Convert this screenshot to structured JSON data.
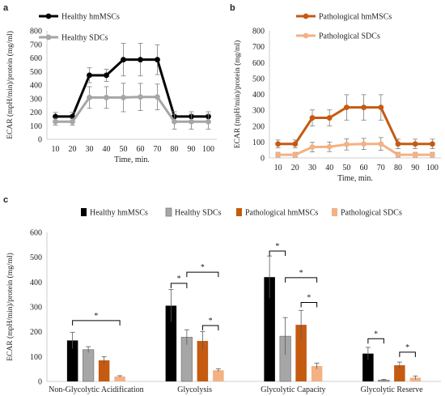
{
  "panels": {
    "a": {
      "letter": "a"
    },
    "b": {
      "letter": "b"
    },
    "c": {
      "letter": "c"
    }
  },
  "chart_data": [
    {
      "id": "a",
      "type": "line",
      "ylabel": "ECAR (mpH/min)/protein (mg/ml)",
      "xlabel": "Time, min.",
      "x": [
        10,
        20,
        30,
        40,
        50,
        60,
        70,
        80,
        90,
        100
      ],
      "ylim": [
        0,
        800
      ],
      "yticks": [
        0,
        100,
        200,
        300,
        400,
        500,
        600,
        700,
        800
      ],
      "grid": false,
      "legend": "top-left",
      "series": [
        {
          "name": "Healthy hmMSCs",
          "color": "#000000",
          "values": [
            168,
            168,
            472,
            472,
            587,
            587,
            587,
            168,
            168,
            168
          ],
          "errors": [
            30,
            30,
            55,
            45,
            120,
            120,
            110,
            35,
            35,
            35
          ]
        },
        {
          "name": "Healthy SDCs",
          "color": "#a6a6a6",
          "values": [
            130,
            130,
            308,
            308,
            308,
            312,
            312,
            130,
            130,
            130
          ],
          "errors": [
            25,
            25,
            80,
            80,
            105,
            100,
            95,
            55,
            55,
            55
          ]
        }
      ]
    },
    {
      "id": "b",
      "type": "line",
      "ylabel": "ECAR (mpH/min)/protein (mg/ml)",
      "xlabel": "Time, min.",
      "x": [
        10,
        20,
        30,
        40,
        50,
        60,
        70,
        80,
        90,
        100
      ],
      "ylim": [
        0,
        800
      ],
      "yticks": [
        0,
        100,
        200,
        300,
        400,
        500,
        600,
        700,
        800
      ],
      "grid": false,
      "legend": "top-right",
      "series": [
        {
          "name": "Pathological hmMSCs",
          "color": "#c55a11",
          "values": [
            88,
            88,
            252,
            252,
            318,
            318,
            318,
            88,
            88,
            88
          ],
          "errors": [
            25,
            25,
            50,
            50,
            80,
            80,
            80,
            30,
            30,
            30
          ]
        },
        {
          "name": "Pathological SDCs",
          "color": "#f4b183",
          "values": [
            20,
            20,
            68,
            70,
            85,
            88,
            88,
            20,
            20,
            20
          ],
          "errors": [
            15,
            15,
            30,
            30,
            35,
            35,
            40,
            15,
            15,
            15
          ]
        }
      ]
    },
    {
      "id": "c",
      "type": "bar",
      "ylabel": "ECAR (mpH/min)/protein (mg/ml)",
      "categories": [
        "Non-Glycolytic Acidification",
        "Glycolysis",
        "Glycolytic Capacity",
        "Glycolytic Reserve"
      ],
      "ylim": [
        0,
        600
      ],
      "yticks": [
        0,
        100,
        200,
        300,
        400,
        500,
        600
      ],
      "grid": false,
      "legend": "top",
      "series": [
        {
          "name": "Healthy hmMSCs",
          "color": "#000000",
          "values": [
            165,
            305,
            420,
            112
          ],
          "errors": [
            33,
            65,
            85,
            25
          ]
        },
        {
          "name": "Healthy SDCs",
          "color": "#a6a6a6",
          "values": [
            128,
            178,
            182,
            5
          ],
          "errors": [
            12,
            30,
            75,
            3
          ]
        },
        {
          "name": "Pathological hmMSCs",
          "color": "#c55a11",
          "values": [
            85,
            163,
            228,
            65
          ],
          "errors": [
            15,
            38,
            58,
            13
          ]
        },
        {
          "name": "Pathological SDCs",
          "color": "#f4b183",
          "values": [
            20,
            45,
            62,
            15
          ],
          "errors": [
            3,
            6,
            12,
            7
          ]
        }
      ],
      "annotations": [
        {
          "label": "*",
          "category": 0,
          "from_series": 0,
          "to_series": 3,
          "y": 245
        },
        {
          "label": "*",
          "category": 1,
          "from_series": 0,
          "to_series": 1,
          "y": 395
        },
        {
          "label": "*",
          "category": 1,
          "from_series": 1,
          "to_series": 3,
          "y": 440
        },
        {
          "label": "*",
          "category": 1,
          "from_series": 2,
          "to_series": 3,
          "y": 225
        },
        {
          "label": "*",
          "category": 2,
          "from_series": 0,
          "to_series": 1,
          "y": 525
        },
        {
          "label": "*",
          "category": 2,
          "from_series": 1,
          "to_series": 3,
          "y": 418
        },
        {
          "label": "*",
          "category": 2,
          "from_series": 2,
          "to_series": 3,
          "y": 318
        },
        {
          "label": "*",
          "category": 3,
          "from_series": 0,
          "to_series": 1,
          "y": 172
        },
        {
          "label": "*",
          "category": 3,
          "from_series": 2,
          "to_series": 3,
          "y": 118
        }
      ]
    }
  ]
}
